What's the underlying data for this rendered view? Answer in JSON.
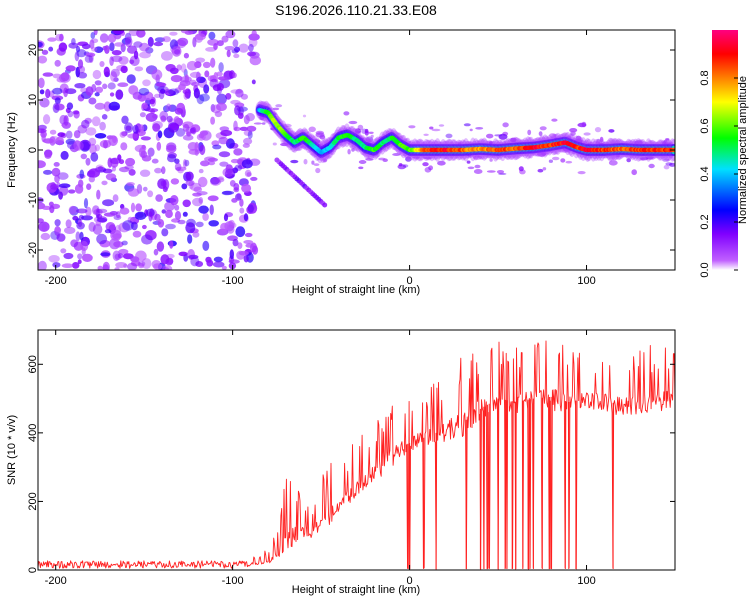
{
  "title": "S196.2026.110.21.33.E08",
  "chart_data": [
    {
      "type": "heatmap",
      "name": "spectrogram",
      "xlabel": "Height of straight line (km)",
      "ylabel": "Frequency (Hz)",
      "xlim": [
        -210,
        150
      ],
      "ylim": [
        -24,
        24
      ],
      "xticks": [
        -200,
        -100,
        0,
        100
      ],
      "xtick_labels": [
        "-200",
        "-100",
        "0",
        "100"
      ],
      "yticks": [
        -20,
        -10,
        0,
        10,
        20
      ],
      "ytick_labels": [
        "-20",
        "-10",
        "0",
        "10",
        "20"
      ],
      "noise_region_x": [
        -210,
        -87
      ],
      "ridge": {
        "x": [
          -85,
          -80,
          -75,
          -70,
          -65,
          -60,
          -55,
          -50,
          -45,
          -40,
          -35,
          -30,
          -25,
          -20,
          -15,
          -10,
          -5,
          0,
          10,
          20,
          30,
          40,
          50,
          60,
          70,
          80,
          88,
          95,
          100,
          110,
          120,
          130,
          140,
          150
        ],
        "y": [
          8,
          7.5,
          5,
          3,
          1.5,
          2.5,
          1,
          -0.5,
          0.5,
          2.5,
          3,
          2,
          0.5,
          0,
          1.5,
          2.5,
          1,
          0,
          0,
          0,
          0,
          0.2,
          0,
          0.3,
          0.5,
          1,
          1.5,
          0.5,
          0,
          0,
          0.2,
          0,
          0,
          0
        ],
        "amplitude": [
          0.4,
          0.6,
          0.7,
          0.6,
          0.5,
          0.6,
          0.5,
          0.4,
          0.45,
          0.55,
          0.6,
          0.5,
          0.5,
          0.6,
          0.5,
          0.55,
          0.6,
          0.6,
          0.9,
          0.95,
          0.85,
          0.8,
          0.9,
          0.85,
          0.95,
          0.9,
          0.95,
          0.9,
          0.95,
          0.9,
          0.85,
          0.9,
          0.9,
          0.9
        ]
      },
      "secondary_streak": {
        "x": [
          -75,
          -48
        ],
        "y": [
          -2,
          -11
        ]
      },
      "colorbar": {
        "label": "Normalized spectral amplitude",
        "range": [
          0.0,
          1.0
        ],
        "ticks": [
          0.0,
          0.2,
          0.4,
          0.6,
          0.8
        ],
        "tick_labels": [
          "0.0",
          "0.2",
          "0.4",
          "0.6",
          "0.8"
        ],
        "colors": [
          "#ffffff",
          "#8000ff",
          "#0000ff",
          "#00e0ff",
          "#00ff00",
          "#ffff00",
          "#ff8000",
          "#ff0000",
          "#ff0080"
        ]
      }
    },
    {
      "type": "line",
      "name": "snr",
      "xlabel": "Height of straight line (km)",
      "ylabel": "SNR (10 * v/v)",
      "xlim": [
        -210,
        150
      ],
      "ylim": [
        0,
        700
      ],
      "xticks": [
        -200,
        -100,
        0,
        100
      ],
      "xtick_labels": [
        "-200",
        "-100",
        "0",
        "100"
      ],
      "yticks": [
        0,
        200,
        400,
        600
      ],
      "ytick_labels": [
        "0",
        "200",
        "400",
        "600"
      ],
      "color": "#ff2020",
      "series": [
        {
          "name": "SNR",
          "x": [
            -210,
            -180,
            -150,
            -120,
            -90,
            -80,
            -75,
            -70,
            -65,
            -60,
            -55,
            -50,
            -45,
            -40,
            -35,
            -30,
            -25,
            -20,
            -15,
            -10,
            -5,
            0,
            10,
            20,
            30,
            40,
            50,
            60,
            70,
            80,
            90,
            100,
            110,
            120,
            130,
            140,
            150
          ],
          "baseline": [
            15,
            15,
            15,
            15,
            18,
            25,
            45,
            80,
            110,
            120,
            110,
            140,
            165,
            195,
            215,
            240,
            265,
            290,
            310,
            335,
            360,
            370,
            390,
            410,
            430,
            470,
            500,
            490,
            500,
            505,
            490,
            500,
            495,
            480,
            490,
            495,
            500
          ],
          "spike_max": [
            30,
            30,
            30,
            30,
            35,
            60,
            120,
            280,
            260,
            230,
            200,
            270,
            320,
            340,
            350,
            390,
            410,
            440,
            480,
            500,
            500,
            510,
            540,
            580,
            640,
            680,
            670,
            660,
            660,
            690,
            650,
            640,
            640,
            640,
            650,
            660,
            680
          ],
          "dropout_x": [
            -1,
            0,
            8,
            15,
            32,
            40,
            42,
            44,
            45,
            50,
            54,
            55,
            58,
            60,
            64,
            67,
            68,
            70,
            75,
            79,
            80,
            88,
            90,
            94,
            115
          ]
        }
      ]
    }
  ]
}
